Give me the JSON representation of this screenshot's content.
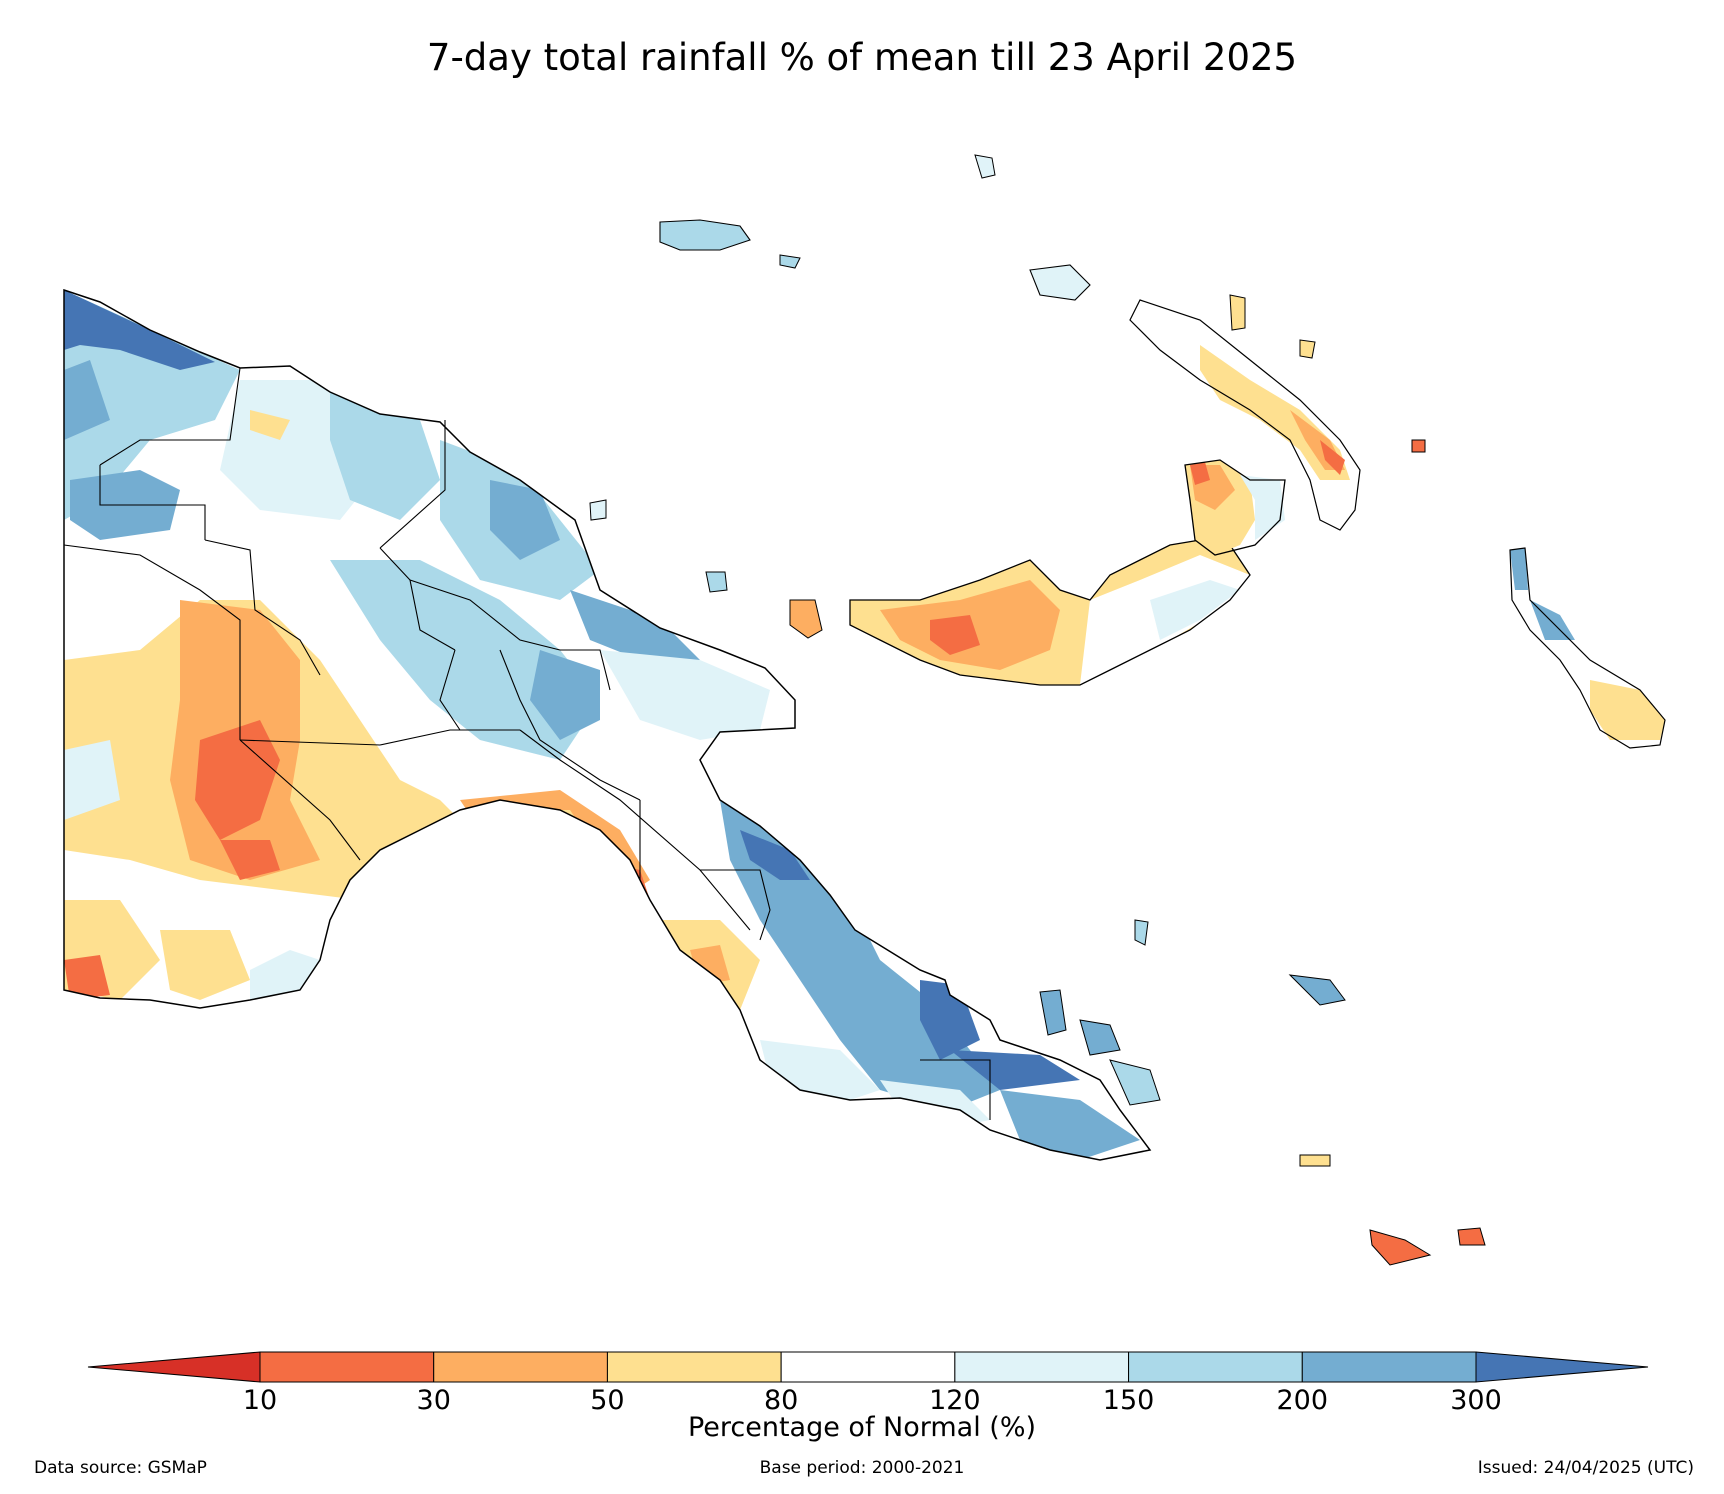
{
  "title": "7-day total rainfall % of mean till 23 April 2025",
  "colorbar": {
    "label": "Percentage of Normal (%)",
    "ticks": [
      "10",
      "30",
      "50",
      "80",
      "120",
      "150",
      "200",
      "300"
    ],
    "bins": [
      {
        "range": "<10",
        "color": "#d73027"
      },
      {
        "range": "10-30",
        "color": "#f46d43"
      },
      {
        "range": "30-50",
        "color": "#fdae61"
      },
      {
        "range": "50-80",
        "color": "#fee090"
      },
      {
        "range": "80-120",
        "color": "#ffffff"
      },
      {
        "range": "120-150",
        "color": "#e0f3f8"
      },
      {
        "range": "150-200",
        "color": "#abd9e9"
      },
      {
        "range": "200-300",
        "color": "#74add1"
      },
      {
        "range": ">300",
        "color": "#4575b4"
      }
    ]
  },
  "footer": {
    "source": "Data source: GSMaP",
    "base_period": "Base period: 2000-2021",
    "issued": "Issued: 24/04/2025 (UTC)"
  }
}
